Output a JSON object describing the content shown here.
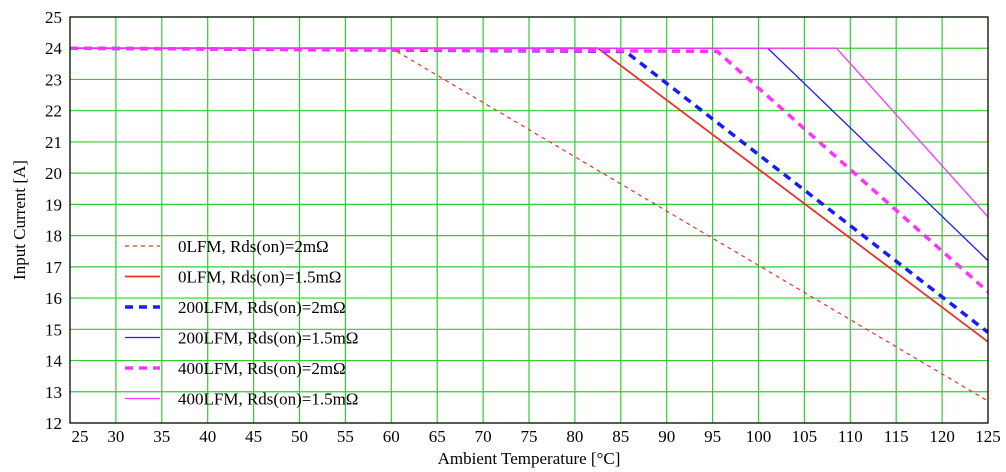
{
  "chart_data": {
    "type": "line",
    "xlabel": "Ambient Temperature [°C]",
    "ylabel": "Input Current [A]",
    "xlim": [
      25,
      125
    ],
    "ylim": [
      12,
      25
    ],
    "xticks": [
      25,
      30,
      35,
      40,
      45,
      50,
      55,
      60,
      65,
      70,
      75,
      80,
      85,
      90,
      95,
      100,
      105,
      110,
      115,
      120,
      125
    ],
    "yticks": [
      12,
      13,
      14,
      15,
      16,
      17,
      18,
      19,
      20,
      21,
      22,
      23,
      24,
      25
    ],
    "grid": true,
    "grid_color": "#33cc33",
    "legend_placement": "bottom-left",
    "series": [
      {
        "name": "0LFM, Rds(on)=2mΩ",
        "color": "#e8322b",
        "dash": "4,4",
        "width": 1.2,
        "x": [
          25,
          60,
          125
        ],
        "y": [
          24,
          24,
          12.7
        ]
      },
      {
        "name": "0LFM, Rds(on)=1.5mΩ",
        "color": "#e8322b",
        "dash": "",
        "width": 1.8,
        "x": [
          25,
          82.5,
          125
        ],
        "y": [
          24,
          24,
          14.6
        ]
      },
      {
        "name": "200LFM, Rds(on)=2mΩ",
        "color": "#1a1aff",
        "dash": "8,6",
        "width": 3.5,
        "x": [
          25,
          85.5,
          125
        ],
        "y": [
          24,
          23.9,
          14.9
        ]
      },
      {
        "name": "200LFM, Rds(on)=1.5mΩ",
        "color": "#1a1aff",
        "dash": "",
        "width": 1.3,
        "x": [
          25,
          101,
          125
        ],
        "y": [
          24,
          24,
          17.2
        ]
      },
      {
        "name": "400LFM, Rds(on)=2mΩ",
        "color": "#ff33ff",
        "dash": "8,6",
        "width": 3.5,
        "x": [
          25,
          95.5,
          125
        ],
        "y": [
          24,
          23.9,
          16.2
        ]
      },
      {
        "name": "400LFM, Rds(on)=1.5mΩ",
        "color": "#ff33ff",
        "dash": "",
        "width": 1.3,
        "x": [
          25,
          108.5,
          125
        ],
        "y": [
          24,
          24,
          18.6
        ]
      }
    ]
  }
}
